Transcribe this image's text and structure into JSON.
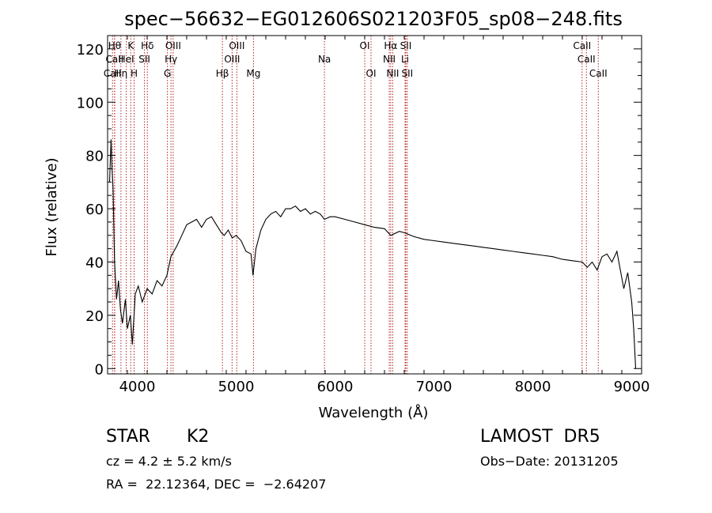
{
  "chart_data": {
    "type": "line",
    "title": "spec−56632−EG012606S021203F05_sp08−248.fits",
    "xlabel": "Wavelength (Å)",
    "ylabel": "Flux (relative)",
    "xlim": [
      3700,
      9100
    ],
    "ylim": [
      -2,
      125
    ],
    "x_ticks": [
      4000,
      5000,
      6000,
      7000,
      8000,
      9000
    ],
    "y_ticks": [
      0,
      20,
      40,
      60,
      80,
      100,
      120
    ],
    "grid": false,
    "line_color": "#000000",
    "marker_color": "#b22222",
    "series": [
      {
        "values": [
          [
            3720,
            70
          ],
          [
            3735,
            86
          ],
          [
            3745,
            75
          ],
          [
            3755,
            68
          ],
          [
            3770,
            40
          ],
          [
            3790,
            26
          ],
          [
            3810,
            33
          ],
          [
            3830,
            22
          ],
          [
            3850,
            17
          ],
          [
            3880,
            26
          ],
          [
            3900,
            15
          ],
          [
            3930,
            20
          ],
          [
            3950,
            9
          ],
          [
            3980,
            28
          ],
          [
            4010,
            31
          ],
          [
            4050,
            25
          ],
          [
            4100,
            30
          ],
          [
            4150,
            28
          ],
          [
            4200,
            33
          ],
          [
            4250,
            31
          ],
          [
            4300,
            35
          ],
          [
            4340,
            42
          ],
          [
            4370,
            44
          ],
          [
            4400,
            46
          ],
          [
            4450,
            50
          ],
          [
            4500,
            54
          ],
          [
            4550,
            55
          ],
          [
            4600,
            56
          ],
          [
            4650,
            53
          ],
          [
            4700,
            56
          ],
          [
            4750,
            57
          ],
          [
            4800,
            54
          ],
          [
            4850,
            51
          ],
          [
            4880,
            50
          ],
          [
            4920,
            52
          ],
          [
            4960,
            49
          ],
          [
            5000,
            50
          ],
          [
            5050,
            48
          ],
          [
            5100,
            44
          ],
          [
            5150,
            43
          ],
          [
            5170,
            35
          ],
          [
            5200,
            45
          ],
          [
            5250,
            52
          ],
          [
            5300,
            56
          ],
          [
            5350,
            58
          ],
          [
            5400,
            59
          ],
          [
            5450,
            57
          ],
          [
            5500,
            60
          ],
          [
            5550,
            60
          ],
          [
            5600,
            61
          ],
          [
            5650,
            59
          ],
          [
            5700,
            60
          ],
          [
            5750,
            58
          ],
          [
            5800,
            59
          ],
          [
            5850,
            58
          ],
          [
            5893,
            56
          ],
          [
            5950,
            57
          ],
          [
            6000,
            57
          ],
          [
            6100,
            56
          ],
          [
            6200,
            55
          ],
          [
            6300,
            54
          ],
          [
            6400,
            53
          ],
          [
            6500,
            52.5
          ],
          [
            6563,
            50
          ],
          [
            6650,
            51.5
          ],
          [
            6700,
            51
          ],
          [
            6800,
            49.5
          ],
          [
            6900,
            48.5
          ],
          [
            7000,
            48
          ],
          [
            7100,
            47.5
          ],
          [
            7200,
            47
          ],
          [
            7300,
            46.5
          ],
          [
            7400,
            46
          ],
          [
            7500,
            45.5
          ],
          [
            7600,
            45
          ],
          [
            7700,
            44.5
          ],
          [
            7800,
            44
          ],
          [
            7900,
            43.5
          ],
          [
            8000,
            43
          ],
          [
            8100,
            42.5
          ],
          [
            8200,
            42
          ],
          [
            8300,
            41
          ],
          [
            8400,
            40.5
          ],
          [
            8500,
            40
          ],
          [
            8550,
            38
          ],
          [
            8600,
            40
          ],
          [
            8650,
            37
          ],
          [
            8700,
            42
          ],
          [
            8750,
            43
          ],
          [
            8800,
            40
          ],
          [
            8850,
            44
          ],
          [
            8880,
            38
          ],
          [
            8920,
            30
          ],
          [
            8960,
            36
          ],
          [
            9000,
            25
          ],
          [
            9020,
            15
          ],
          [
            9040,
            0
          ]
        ]
      }
    ],
    "lines": [
      {
        "wl": 3750,
        "label": "CaII",
        "row": 3
      },
      {
        "wl": 3771,
        "label": "Hθ",
        "row": 1
      },
      {
        "wl": 3771,
        "label": "CaII",
        "row": 2
      },
      {
        "wl": 3835,
        "label": "Hη",
        "row": 3
      },
      {
        "wl": 3889,
        "label": "HeI",
        "row": 2
      },
      {
        "wl": 3934,
        "label": "K",
        "row": 1
      },
      {
        "wl": 3968,
        "label": "H",
        "row": 3
      },
      {
        "wl": 4073,
        "label": "SII",
        "row": 2
      },
      {
        "wl": 4102,
        "label": "Hδ",
        "row": 1
      },
      {
        "wl": 4305,
        "label": "G",
        "row": 3
      },
      {
        "wl": 4341,
        "label": "Hγ",
        "row": 2
      },
      {
        "wl": 4363,
        "label": "OIII",
        "row": 1
      },
      {
        "wl": 4861,
        "label": "Hβ",
        "row": 3
      },
      {
        "wl": 4959,
        "label": "OIII",
        "row": 2
      },
      {
        "wl": 5007,
        "label": "OIII",
        "row": 1
      },
      {
        "wl": 5175,
        "label": "Mg",
        "row": 3
      },
      {
        "wl": 5893,
        "label": "Na",
        "row": 2
      },
      {
        "wl": 6300,
        "label": "OI",
        "row": 1
      },
      {
        "wl": 6364,
        "label": "OI",
        "row": 3
      },
      {
        "wl": 6548,
        "label": "NII",
        "row": 2
      },
      {
        "wl": 6563,
        "label": "Hα",
        "row": 1
      },
      {
        "wl": 6583,
        "label": "NII",
        "row": 3
      },
      {
        "wl": 6708,
        "label": "Li",
        "row": 2
      },
      {
        "wl": 6716,
        "label": "SII",
        "row": 1
      },
      {
        "wl": 6731,
        "label": "SII",
        "row": 3
      },
      {
        "wl": 8498,
        "label": "CaII",
        "row": 1
      },
      {
        "wl": 8542,
        "label": "CaII",
        "row": 2
      },
      {
        "wl": 8662,
        "label": "CaII",
        "row": 3
      }
    ]
  },
  "info": {
    "object_class": "STAR",
    "subclass": "K2",
    "survey": "LAMOST  DR5",
    "redshift": "cz = 4.2 ± 5.2 km/s",
    "obs_date": "Obs−Date: 20131205",
    "coords": "RA =  22.12364, DEC =  −2.64207"
  }
}
